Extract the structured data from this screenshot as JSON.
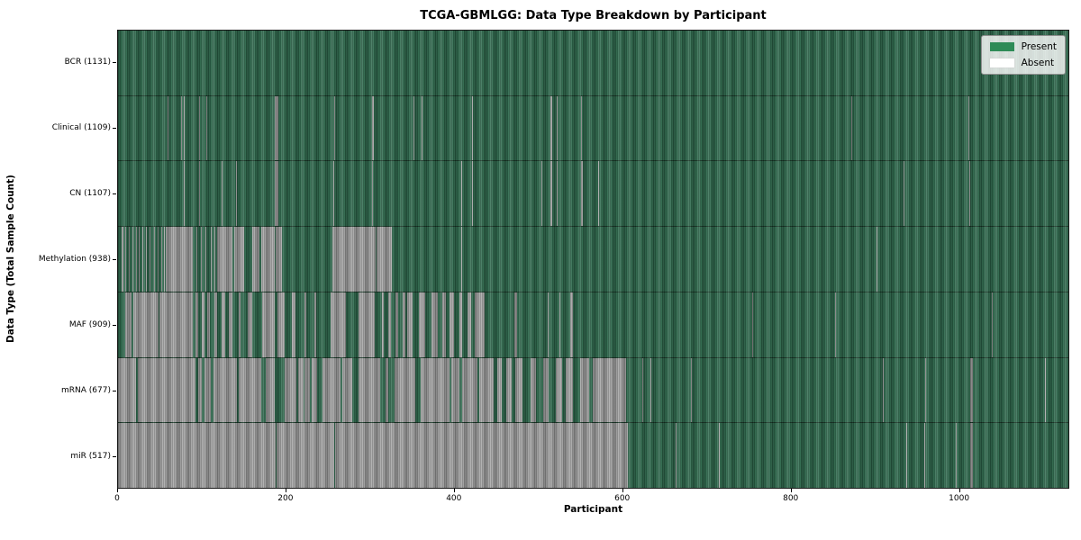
{
  "title": "TCGA-GBMLGG: Data Type Breakdown by Participant",
  "xlabel": "Participant",
  "ylabel": "Data Type (Total Sample Count)",
  "legend": {
    "present_label": "Present",
    "absent_label": "Absent"
  },
  "colors": {
    "present_fill": "#2f6b4e",
    "absent_fill": "#a5a5a5",
    "legend_present": "#2e8b57",
    "legend_absent": "#ffffff"
  },
  "chart_data": {
    "type": "heatmap",
    "title": "TCGA-GBMLGG: Data Type Breakdown by Participant",
    "xlabel": "Participant",
    "ylabel": "Data Type (Total Sample Count)",
    "legend_entries": [
      "Present",
      "Absent"
    ],
    "legend_position": "upper right",
    "grid": false,
    "n_participants": 1131,
    "x_ticks": [
      0,
      200,
      400,
      600,
      800,
      1000
    ],
    "xlim": [
      0,
      1131
    ],
    "rows": [
      {
        "name": "BCR",
        "label": "BCR (1131)",
        "present_count": 1131,
        "absent_segments": []
      },
      {
        "name": "Clinical",
        "label": "Clinical (1109)",
        "present_count": 1109,
        "absent_segments": [
          [
            59,
            60
          ],
          [
            75,
            76
          ],
          [
            78,
            79
          ],
          [
            96,
            97
          ],
          [
            105,
            106
          ],
          [
            186,
            190
          ],
          [
            257,
            258
          ],
          [
            302,
            304
          ],
          [
            351,
            352
          ],
          [
            361,
            362
          ],
          [
            421,
            422
          ],
          [
            514,
            516
          ],
          [
            521,
            522
          ],
          [
            550,
            551
          ],
          [
            871,
            872
          ],
          [
            1010,
            1011
          ]
        ]
      },
      {
        "name": "CN",
        "label": "CN (1107)",
        "present_count": 1107,
        "absent_segments": [
          [
            78,
            79
          ],
          [
            96,
            97
          ],
          [
            123,
            124
          ],
          [
            140,
            141
          ],
          [
            186,
            190
          ],
          [
            256,
            257
          ],
          [
            302,
            303
          ],
          [
            408,
            409
          ],
          [
            421,
            422
          ],
          [
            503,
            504
          ],
          [
            514,
            516
          ],
          [
            521,
            522
          ],
          [
            550,
            552
          ],
          [
            570,
            571
          ],
          [
            933,
            934
          ],
          [
            1011,
            1012
          ]
        ]
      },
      {
        "name": "Methylation",
        "label": "Methylation (938)",
        "present_count": 938,
        "absent_segments": [
          [
            4,
            6
          ],
          [
            9,
            10
          ],
          [
            13,
            14
          ],
          [
            17,
            18
          ],
          [
            21,
            22
          ],
          [
            25,
            26
          ],
          [
            29,
            30
          ],
          [
            33,
            34
          ],
          [
            37,
            39
          ],
          [
            43,
            44
          ],
          [
            47,
            48
          ],
          [
            51,
            52
          ],
          [
            55,
            56
          ],
          [
            57,
            89
          ],
          [
            93,
            94
          ],
          [
            98,
            99
          ],
          [
            104,
            105
          ],
          [
            110,
            111
          ],
          [
            115,
            116
          ],
          [
            118,
            136
          ],
          [
            138,
            150
          ],
          [
            159,
            168
          ],
          [
            170,
            186
          ],
          [
            187,
            195
          ],
          [
            255,
            306
          ],
          [
            307,
            325
          ],
          [
            408,
            409
          ],
          [
            901,
            902
          ]
        ]
      },
      {
        "name": "MAF",
        "label": "MAF (909)",
        "present_count": 909,
        "absent_segments": [
          [
            9,
            16
          ],
          [
            18,
            30
          ],
          [
            30,
            48
          ],
          [
            49,
            89
          ],
          [
            92,
            95
          ],
          [
            100,
            103
          ],
          [
            106,
            109
          ],
          [
            114,
            118
          ],
          [
            123,
            127
          ],
          [
            132,
            136
          ],
          [
            143,
            146
          ],
          [
            154,
            159
          ],
          [
            171,
            186
          ],
          [
            189,
            198
          ],
          [
            207,
            211
          ],
          [
            221,
            224
          ],
          [
            233,
            235
          ],
          [
            252,
            271
          ],
          [
            286,
            305
          ],
          [
            313,
            316
          ],
          [
            321,
            324
          ],
          [
            330,
            333
          ],
          [
            338,
            341
          ],
          [
            343,
            350
          ],
          [
            357,
            365
          ],
          [
            372,
            380
          ],
          [
            385,
            389
          ],
          [
            394,
            399
          ],
          [
            405,
            409
          ],
          [
            415,
            419
          ],
          [
            424,
            435
          ],
          [
            471,
            474
          ],
          [
            510,
            511
          ],
          [
            524,
            525
          ],
          [
            537,
            540
          ],
          [
            753,
            754
          ],
          [
            852,
            853
          ],
          [
            1038,
            1039
          ]
        ]
      },
      {
        "name": "mRNA",
        "label": "mRNA (677)",
        "present_count": 677,
        "absent_segments": [
          [
            0,
            21
          ],
          [
            23,
            89
          ],
          [
            89,
            92
          ],
          [
            95,
            100
          ],
          [
            103,
            110
          ],
          [
            113,
            141
          ],
          [
            143,
            154
          ],
          [
            154,
            170
          ],
          [
            175,
            186
          ],
          [
            198,
            212
          ],
          [
            214,
            220
          ],
          [
            222,
            228
          ],
          [
            230,
            236
          ],
          [
            243,
            264
          ],
          [
            266,
            278
          ],
          [
            286,
            311
          ],
          [
            318,
            321
          ],
          [
            328,
            353
          ],
          [
            360,
            394
          ],
          [
            396,
            406
          ],
          [
            409,
            427
          ],
          [
            429,
            446
          ],
          [
            451,
            456
          ],
          [
            461,
            468
          ],
          [
            472,
            480
          ],
          [
            490,
            497
          ],
          [
            505,
            512
          ],
          [
            520,
            527
          ],
          [
            532,
            540
          ],
          [
            549,
            560
          ],
          [
            564,
            603
          ],
          [
            623,
            624
          ],
          [
            632,
            633
          ],
          [
            680,
            681
          ],
          [
            908,
            909
          ],
          [
            959,
            960
          ],
          [
            1012,
            1015
          ],
          [
            1101,
            1102
          ]
        ]
      },
      {
        "name": "miR",
        "label": "miR (517)",
        "present_count": 517,
        "absent_segments": [
          [
            0,
            187
          ],
          [
            188,
            257
          ],
          [
            258,
            606
          ],
          [
            662,
            663
          ],
          [
            714,
            715
          ],
          [
            936,
            937
          ],
          [
            958,
            959
          ],
          [
            995,
            996
          ],
          [
            1012,
            1015
          ]
        ]
      }
    ]
  }
}
